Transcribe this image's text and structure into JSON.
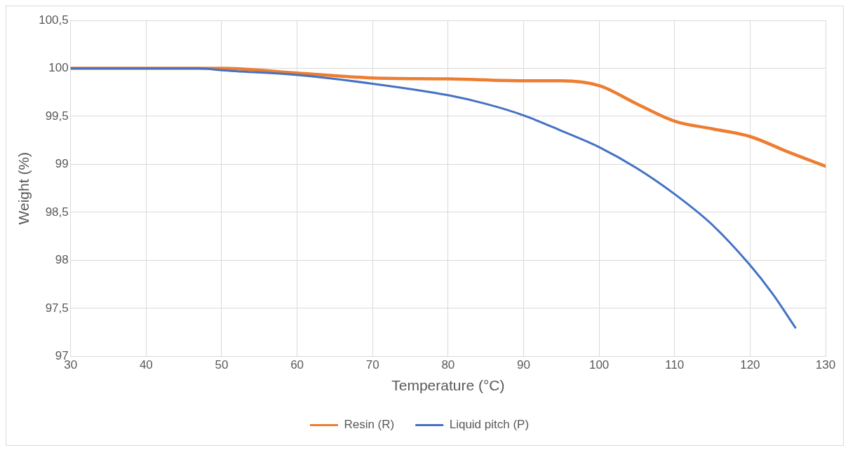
{
  "chart_data": {
    "type": "line",
    "xlabel": "Temperature (°C)",
    "ylabel": "Weight (%)",
    "xlim": [
      30,
      130
    ],
    "xticks": [
      30,
      40,
      50,
      60,
      70,
      80,
      90,
      100,
      110,
      120,
      130
    ],
    "ylim": [
      97,
      100.5
    ],
    "yticks": [
      97,
      {
        "value": 97.5,
        "label": "97,5"
      },
      98,
      {
        "value": 98.5,
        "label": "98,5"
      },
      99,
      {
        "value": 99.5,
        "label": "99,5"
      },
      100,
      {
        "value": 100.5,
        "label": "100,5"
      }
    ],
    "grid": true,
    "legend": "bottom",
    "marker": "none",
    "line_style": "solid",
    "series": [
      {
        "name": "Resin (R)",
        "color": "#ed7d31",
        "x": [
          30,
          40,
          47,
          50,
          60,
          70,
          80,
          90,
          95,
          100,
          105,
          110,
          115,
          120,
          125,
          130
        ],
        "values": [
          100,
          100,
          100,
          100,
          99.95,
          99.9,
          99.89,
          99.87,
          99.87,
          99.82,
          99.63,
          99.45,
          99.37,
          99.29,
          99.13,
          98.98
        ]
      },
      {
        "name": "Liquid pitch (P)",
        "color": "#4472c4",
        "x": [
          30,
          40,
          47,
          50,
          60,
          70,
          80,
          85,
          90,
          95,
          100,
          105,
          110,
          115,
          120,
          123,
          126
        ],
        "values": [
          100,
          100,
          100,
          99.98,
          99.93,
          99.84,
          99.72,
          99.63,
          99.51,
          99.35,
          99.18,
          98.96,
          98.69,
          98.37,
          97.95,
          97.65,
          97.3
        ]
      }
    ]
  }
}
